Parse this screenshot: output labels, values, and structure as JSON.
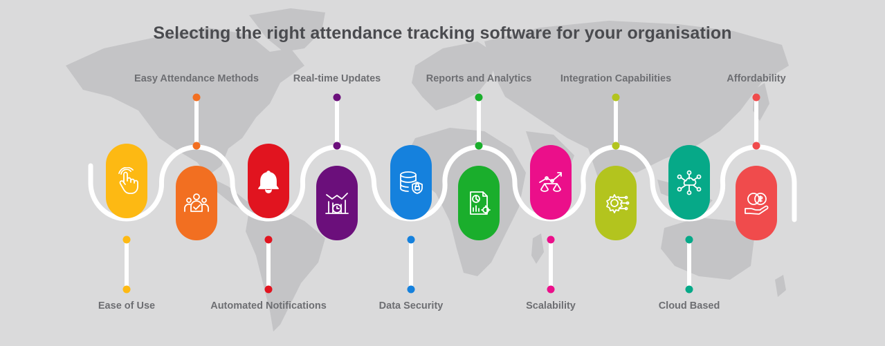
{
  "title": "Selecting the right attendance tracking software for your organisation",
  "features": [
    {
      "label": "Ease of Use",
      "position": "bottom",
      "color": "#fdb913",
      "icon": "touch-hand-icon"
    },
    {
      "label": "Easy Attendance Methods",
      "position": "top",
      "color": "#f26f21",
      "icon": "team-check-icon"
    },
    {
      "label": "Automated Notifications",
      "position": "bottom",
      "color": "#e1141f",
      "icon": "bell-icon"
    },
    {
      "label": "Real-time Updates",
      "position": "top",
      "color": "#6b0f7b",
      "icon": "chart-clock-icon"
    },
    {
      "label": "Data Security",
      "position": "bottom",
      "color": "#1581dd",
      "icon": "database-shield-icon"
    },
    {
      "label": "Reports and Analytics",
      "position": "top",
      "color": "#1aae2c",
      "icon": "report-document-icon"
    },
    {
      "label": "Scalability",
      "position": "bottom",
      "color": "#eb0f8a",
      "icon": "scale-growth-icon"
    },
    {
      "label": "Integration Capabilities",
      "position": "top",
      "color": "#b3c41e",
      "icon": "gear-circuit-icon"
    },
    {
      "label": "Cloud Based",
      "position": "bottom",
      "color": "#06a988",
      "icon": "cloud-network-icon"
    },
    {
      "label": "Affordability",
      "position": "top",
      "color": "#f04b4c",
      "icon": "hand-coins-icon"
    }
  ]
}
